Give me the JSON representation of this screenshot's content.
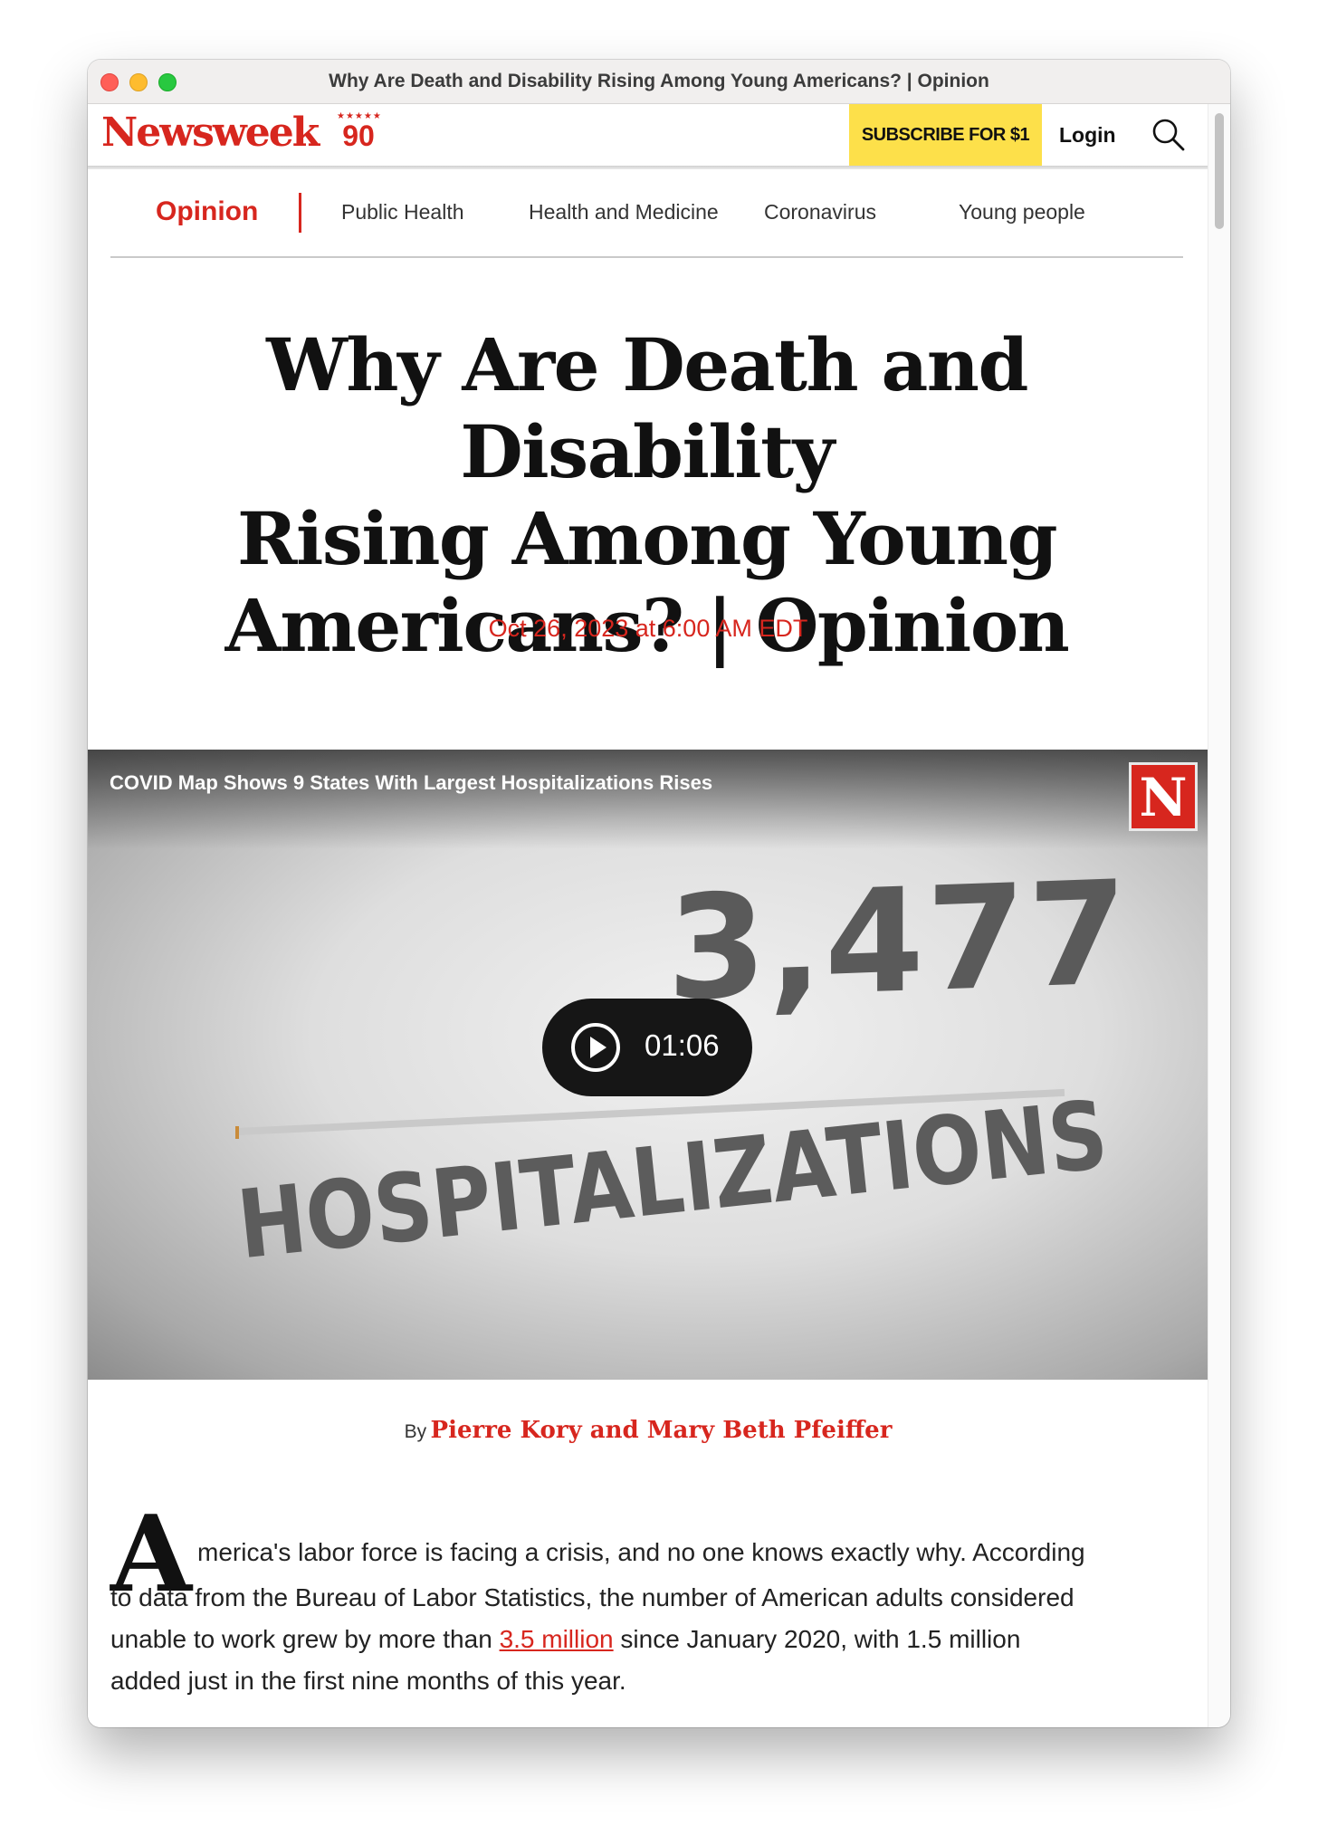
{
  "window": {
    "title": "Why Are Death and Disability Rising Among Young Americans? | Opinion"
  },
  "header": {
    "logo": "Newsweek",
    "anniversary_badge": "90",
    "anniversary_stars": "★★★★★",
    "subscribe_label": "SUBSCRIBE FOR $1",
    "login_label": "Login"
  },
  "subnav": {
    "category": "Opinion",
    "tags": [
      "Public Health",
      "Health and Medicine",
      "Coronavirus",
      "Young people"
    ]
  },
  "article": {
    "headline_lines": [
      "Why Are Death and Disability",
      "Rising Among Young",
      "Americans? | Opinion"
    ],
    "date": "Oct 26, 2023 at 6:00 AM EDT",
    "byline_prefix": "By",
    "authors": "Pierre Kory and Mary Beth Pfeiffer",
    "dropcap": "A",
    "body_lines": {
      "line1": "merica's labor force is facing a crisis, and no one knows exactly why. According",
      "line2": "to data from the Bureau of Labor Statistics, the number of American adults considered",
      "line3_before": "unable to work grew by more than ",
      "line3_link": "3.5 million",
      "line3_after": " since January 2020, with 1.5 million",
      "line4": "added just in the first nine months of this year."
    }
  },
  "video": {
    "title": "COVID Map Shows 9 States With Largest Hospitalizations Rises",
    "logo_letter": "N",
    "frame_number": "3,477",
    "frame_word": "HOSPITALIZATIONS",
    "duration": "01:06"
  },
  "colors": {
    "brand_red": "#d7261e",
    "subscribe_yellow": "#fde04a"
  }
}
